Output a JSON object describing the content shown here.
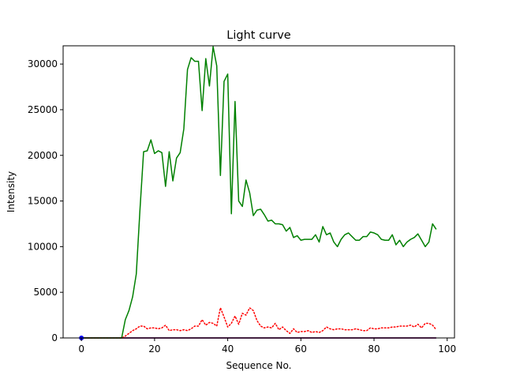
{
  "chart_data": {
    "type": "line",
    "title": "Light curve",
    "xlabel": "Sequence No.",
    "ylabel": "Intensity",
    "xlim": [
      -5,
      102
    ],
    "ylim": [
      0,
      32000
    ],
    "xticks": [
      0,
      20,
      40,
      60,
      80,
      100
    ],
    "yticks": [
      0,
      5000,
      10000,
      15000,
      20000,
      25000,
      30000
    ],
    "grid": false,
    "series": [
      {
        "color": "#008000",
        "style": "solid",
        "values": [
          0,
          0,
          0,
          0,
          0,
          0,
          0,
          0,
          0,
          0,
          0,
          0,
          2000,
          3000,
          4500,
          7000,
          14000,
          20400,
          20500,
          21700,
          20200,
          20500,
          20300,
          16600,
          20400,
          17200,
          19700,
          20300,
          22900,
          29400,
          30700,
          30300,
          30300,
          24900,
          30600,
          27600,
          31900,
          29800,
          17800,
          28100,
          28900,
          13600,
          25900,
          15000,
          14400,
          17300,
          15900,
          13400,
          14000,
          14100,
          13500,
          12800,
          12900,
          12500,
          12500,
          12400,
          11700,
          12100,
          11000,
          11200,
          10700,
          10800,
          10800,
          10800,
          11300,
          10500,
          12200,
          11300,
          11500,
          10500,
          10000,
          10800,
          11300,
          11500,
          11100,
          10700,
          10700,
          11100,
          11100,
          11600,
          11500,
          11300,
          10800,
          10700,
          10700,
          11300,
          10200,
          10700,
          10000,
          10500,
          10800,
          11000,
          11400,
          10700,
          10000,
          10500,
          12500,
          11900
        ]
      },
      {
        "color": "#ff0000",
        "style": "dotted",
        "values": [
          0,
          0,
          0,
          0,
          0,
          0,
          0,
          0,
          0,
          0,
          0,
          0,
          200,
          500,
          800,
          1000,
          1300,
          1300,
          1000,
          1100,
          1100,
          1000,
          1100,
          1400,
          800,
          900,
          900,
          800,
          900,
          800,
          1000,
          1300,
          1300,
          2000,
          1400,
          1700,
          1600,
          1300,
          3300,
          2300,
          1200,
          1600,
          2400,
          1500,
          2700,
          2500,
          3300,
          3000,
          1900,
          1300,
          1100,
          1200,
          1100,
          1600,
          900,
          1200,
          800,
          500,
          1000,
          600,
          700,
          700,
          800,
          600,
          700,
          600,
          800,
          1200,
          1000,
          900,
          1000,
          1000,
          900,
          900,
          900,
          1000,
          900,
          800,
          800,
          1100,
          1000,
          1000,
          1100,
          1100,
          1100,
          1200,
          1200,
          1300,
          1300,
          1300,
          1400,
          1200,
          1500,
          1100,
          1600,
          1600,
          1400,
          900
        ]
      },
      {
        "color": "#0000ff",
        "style": "solid",
        "values": [
          0,
          0,
          0,
          0,
          0,
          0,
          0,
          0,
          0,
          0,
          0,
          0,
          0,
          0,
          0,
          0,
          0,
          0,
          0,
          0,
          0,
          0,
          0,
          0,
          0,
          0,
          0,
          0,
          0,
          0,
          0,
          0,
          0,
          0,
          0,
          0,
          0,
          0,
          0,
          0,
          0,
          0,
          0,
          0,
          0,
          0,
          0,
          0,
          0,
          0,
          0,
          0,
          0,
          0,
          0,
          0,
          0,
          0,
          0,
          0,
          0,
          0,
          0,
          0,
          0,
          0,
          0,
          0,
          0,
          0,
          0,
          0,
          0,
          0,
          0,
          0,
          0,
          0,
          0,
          0,
          0,
          0,
          0,
          0,
          0,
          0,
          0,
          0,
          0,
          0,
          0,
          0,
          0,
          0,
          0,
          0,
          0,
          0
        ]
      },
      {
        "color": "#8b0000",
        "style": "solid",
        "values": [
          0,
          0,
          0,
          0,
          0,
          0,
          0,
          0,
          0,
          0,
          0,
          0,
          0,
          0,
          0,
          0,
          0,
          0,
          0,
          0,
          0,
          0,
          0,
          0,
          0,
          0,
          0,
          0,
          0,
          0,
          0,
          0,
          0,
          0,
          0,
          0,
          0,
          0,
          0,
          0,
          0,
          0,
          0,
          0,
          0,
          0,
          0,
          0,
          0,
          0,
          0,
          0,
          0,
          0,
          0,
          0,
          0,
          0,
          0,
          0,
          0,
          0,
          0,
          0,
          0,
          0,
          0,
          0,
          0,
          0,
          0,
          0,
          0,
          0,
          0,
          0,
          0,
          0,
          0,
          0,
          0,
          0,
          0,
          0,
          0,
          0,
          0,
          0,
          0,
          0,
          0,
          0,
          0,
          0,
          0,
          0,
          0,
          0
        ]
      }
    ],
    "markers": [
      {
        "x": 0,
        "y": 0,
        "color": "#0000ff"
      }
    ]
  }
}
